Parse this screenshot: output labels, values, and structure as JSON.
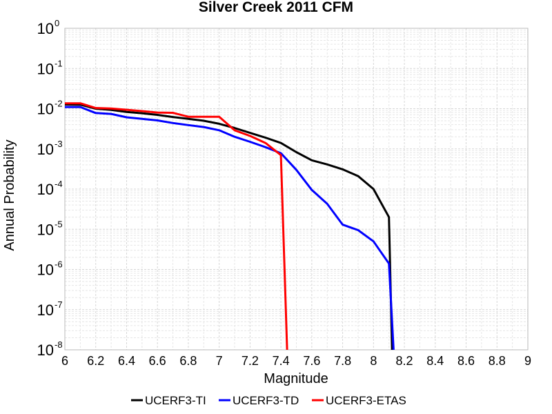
{
  "chart_data": {
    "type": "line",
    "title": "Silver Creek 2011 CFM",
    "xlabel": "Magnitude",
    "ylabel": "Annual Probability",
    "xlim": [
      6,
      9
    ],
    "ylim": [
      1e-08,
      1
    ],
    "yscale": "log",
    "grid": true,
    "legend_position": "bottom",
    "x_ticks": [
      "6",
      "6.2",
      "6.4",
      "6.6",
      "6.8",
      "7",
      "7.2",
      "7.4",
      "7.6",
      "7.8",
      "8",
      "8.2",
      "8.4",
      "8.6",
      "8.8",
      "9"
    ],
    "y_ticks": [
      {
        "base": "10",
        "exp": "0"
      },
      {
        "base": "10",
        "exp": "-1"
      },
      {
        "base": "10",
        "exp": "-2"
      },
      {
        "base": "10",
        "exp": "-3"
      },
      {
        "base": "10",
        "exp": "-4"
      },
      {
        "base": "10",
        "exp": "-5"
      },
      {
        "base": "10",
        "exp": "-6"
      },
      {
        "base": "10",
        "exp": "-7"
      },
      {
        "base": "10",
        "exp": "-8"
      }
    ],
    "series": [
      {
        "name": "UCERF3-TI",
        "color": "#000000",
        "x": [
          6.0,
          6.1,
          6.2,
          6.3,
          6.4,
          6.5,
          6.6,
          6.7,
          6.8,
          6.9,
          7.0,
          7.1,
          7.2,
          7.3,
          7.4,
          7.5,
          7.6,
          7.7,
          7.8,
          7.9,
          8.0,
          8.1,
          8.12
        ],
        "y": [
          0.0127,
          0.0126,
          0.01,
          0.0093,
          0.0083,
          0.0077,
          0.007,
          0.0062,
          0.0056,
          0.005,
          0.0042,
          0.0033,
          0.0025,
          0.0019,
          0.0014,
          0.00083,
          0.00052,
          0.00041,
          0.00031,
          0.00021,
          0.0001,
          2e-05,
          5e-09
        ]
      },
      {
        "name": "UCERF3-TD",
        "color": "#0000ff",
        "x": [
          6.0,
          6.1,
          6.2,
          6.3,
          6.4,
          6.5,
          6.6,
          6.7,
          6.8,
          6.9,
          7.0,
          7.1,
          7.2,
          7.3,
          7.4,
          7.5,
          7.6,
          7.7,
          7.8,
          7.9,
          8.0,
          8.1,
          8.13
        ],
        "y": [
          0.011,
          0.011,
          0.0078,
          0.0074,
          0.0061,
          0.0056,
          0.0051,
          0.0044,
          0.0039,
          0.0035,
          0.0029,
          0.002,
          0.0015,
          0.0011,
          0.00078,
          0.0003,
          9.5e-05,
          4.3e-05,
          1.3e-05,
          9.5e-06,
          5e-06,
          1.4e-06,
          5e-09
        ]
      },
      {
        "name": "UCERF3-ETAS",
        "color": "#ff0000",
        "x": [
          6.0,
          6.1,
          6.2,
          6.3,
          6.4,
          6.5,
          6.6,
          6.7,
          6.8,
          6.9,
          7.0,
          7.1,
          7.2,
          7.3,
          7.4,
          7.44
        ],
        "y": [
          0.0136,
          0.0136,
          0.0104,
          0.0101,
          0.0094,
          0.0087,
          0.008,
          0.0079,
          0.0063,
          0.0063,
          0.0063,
          0.0029,
          0.0021,
          0.0014,
          0.0007,
          5e-09
        ]
      }
    ]
  }
}
